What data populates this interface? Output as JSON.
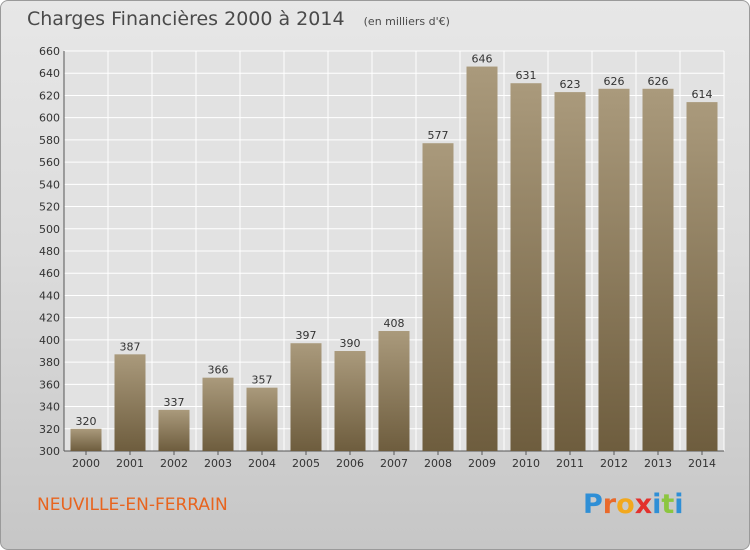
{
  "title": "Charges Financières 2000 à 2014",
  "unit_note": "(en milliers d'€)",
  "town": "NEUVILLE-EN-FERRAIN",
  "logo": {
    "text": "Proxiti",
    "letters": [
      {
        "ch": "P",
        "color": "#2f8fd6"
      },
      {
        "ch": "r",
        "color": "#e9692a"
      },
      {
        "ch": "o",
        "color": "#f2a81d"
      },
      {
        "ch": "x",
        "color": "#e3312d"
      },
      {
        "ch": "i",
        "color": "#2f8fd6"
      },
      {
        "ch": "t",
        "color": "#8cc63f"
      },
      {
        "ch": "i",
        "color": "#2f8fd6"
      }
    ]
  },
  "colors": {
    "bar_top": "#aa9a7c",
    "bar_bottom": "#6e5d3e",
    "title": "#4a4a4a",
    "town": "#e8641e"
  },
  "chart_data": {
    "type": "bar",
    "title": "Charges Financières 2000 à 2014",
    "subtitle": "(en milliers d'€)",
    "categories": [
      "2000",
      "2001",
      "2002",
      "2003",
      "2004",
      "2005",
      "2006",
      "2007",
      "2008",
      "2009",
      "2010",
      "2011",
      "2012",
      "2013",
      "2014"
    ],
    "values": [
      320,
      387,
      337,
      366,
      357,
      397,
      390,
      408,
      577,
      646,
      631,
      623,
      626,
      626,
      614
    ],
    "ylim": [
      300,
      660
    ],
    "yticks": [
      300,
      320,
      340,
      360,
      380,
      400,
      420,
      440,
      460,
      480,
      500,
      520,
      540,
      560,
      580,
      600,
      620,
      640,
      660
    ],
    "grid": true,
    "xlabel": "",
    "ylabel": ""
  }
}
